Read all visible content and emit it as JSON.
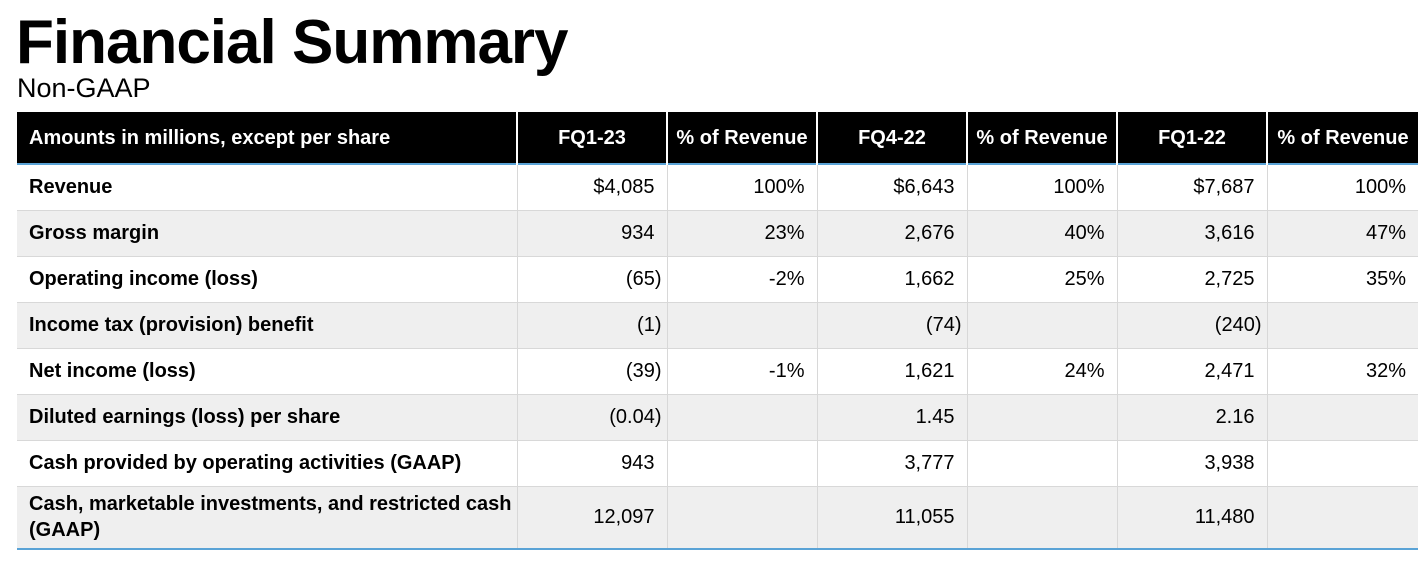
{
  "title": "Financial Summary",
  "subtitle": "Non-GAAP",
  "table": {
    "headers": [
      "Amounts in millions, except per share",
      "FQ1-23",
      "% of Revenue",
      "FQ4-22",
      "% of Revenue",
      "FQ1-22",
      "% of Revenue"
    ],
    "rows": [
      {
        "label": "Revenue",
        "fq1_23": "$4,085",
        "fq1_23_pct": "100%",
        "fq4_22": "$6,643",
        "fq4_22_pct": "100%",
        "fq1_22": "$7,687",
        "fq1_22_pct": "100%"
      },
      {
        "label": "Gross margin",
        "fq1_23": "934",
        "fq1_23_pct": "23%",
        "fq4_22": "2,676",
        "fq4_22_pct": "40%",
        "fq1_22": "3,616",
        "fq1_22_pct": "47%"
      },
      {
        "label": "Operating income (loss)",
        "fq1_23": "(65)",
        "fq1_23_pct": "-2%",
        "fq4_22": "1,662",
        "fq4_22_pct": "25%",
        "fq1_22": "2,725",
        "fq1_22_pct": "35%"
      },
      {
        "label": "Income tax (provision) benefit",
        "fq1_23": "(1)",
        "fq1_23_pct": "",
        "fq4_22": "(74)",
        "fq4_22_pct": "",
        "fq1_22": "(240)",
        "fq1_22_pct": ""
      },
      {
        "label": "Net income (loss)",
        "fq1_23": "(39)",
        "fq1_23_pct": "-1%",
        "fq4_22": "1,621",
        "fq4_22_pct": "24%",
        "fq1_22": "2,471",
        "fq1_22_pct": "32%"
      },
      {
        "label": "Diluted earnings (loss) per share",
        "fq1_23": "(0.04)",
        "fq1_23_pct": "",
        "fq4_22": "1.45",
        "fq4_22_pct": "",
        "fq1_22": "2.16",
        "fq1_22_pct": ""
      },
      {
        "label": "Cash provided by operating activities (GAAP)",
        "fq1_23": "943",
        "fq1_23_pct": "",
        "fq4_22": "3,777",
        "fq4_22_pct": "",
        "fq1_22": "3,938",
        "fq1_22_pct": ""
      },
      {
        "label": "Cash, marketable investments, and restricted cash (GAAP)",
        "fq1_23": "12,097",
        "fq1_23_pct": "",
        "fq4_22": "11,055",
        "fq4_22_pct": "",
        "fq1_22": "11,480",
        "fq1_22_pct": ""
      }
    ]
  },
  "colors": {
    "header_bg": "#000000",
    "header_text": "#ffffff",
    "alt_row_bg": "#efefef",
    "accent_rule": "#5aa3d6"
  }
}
